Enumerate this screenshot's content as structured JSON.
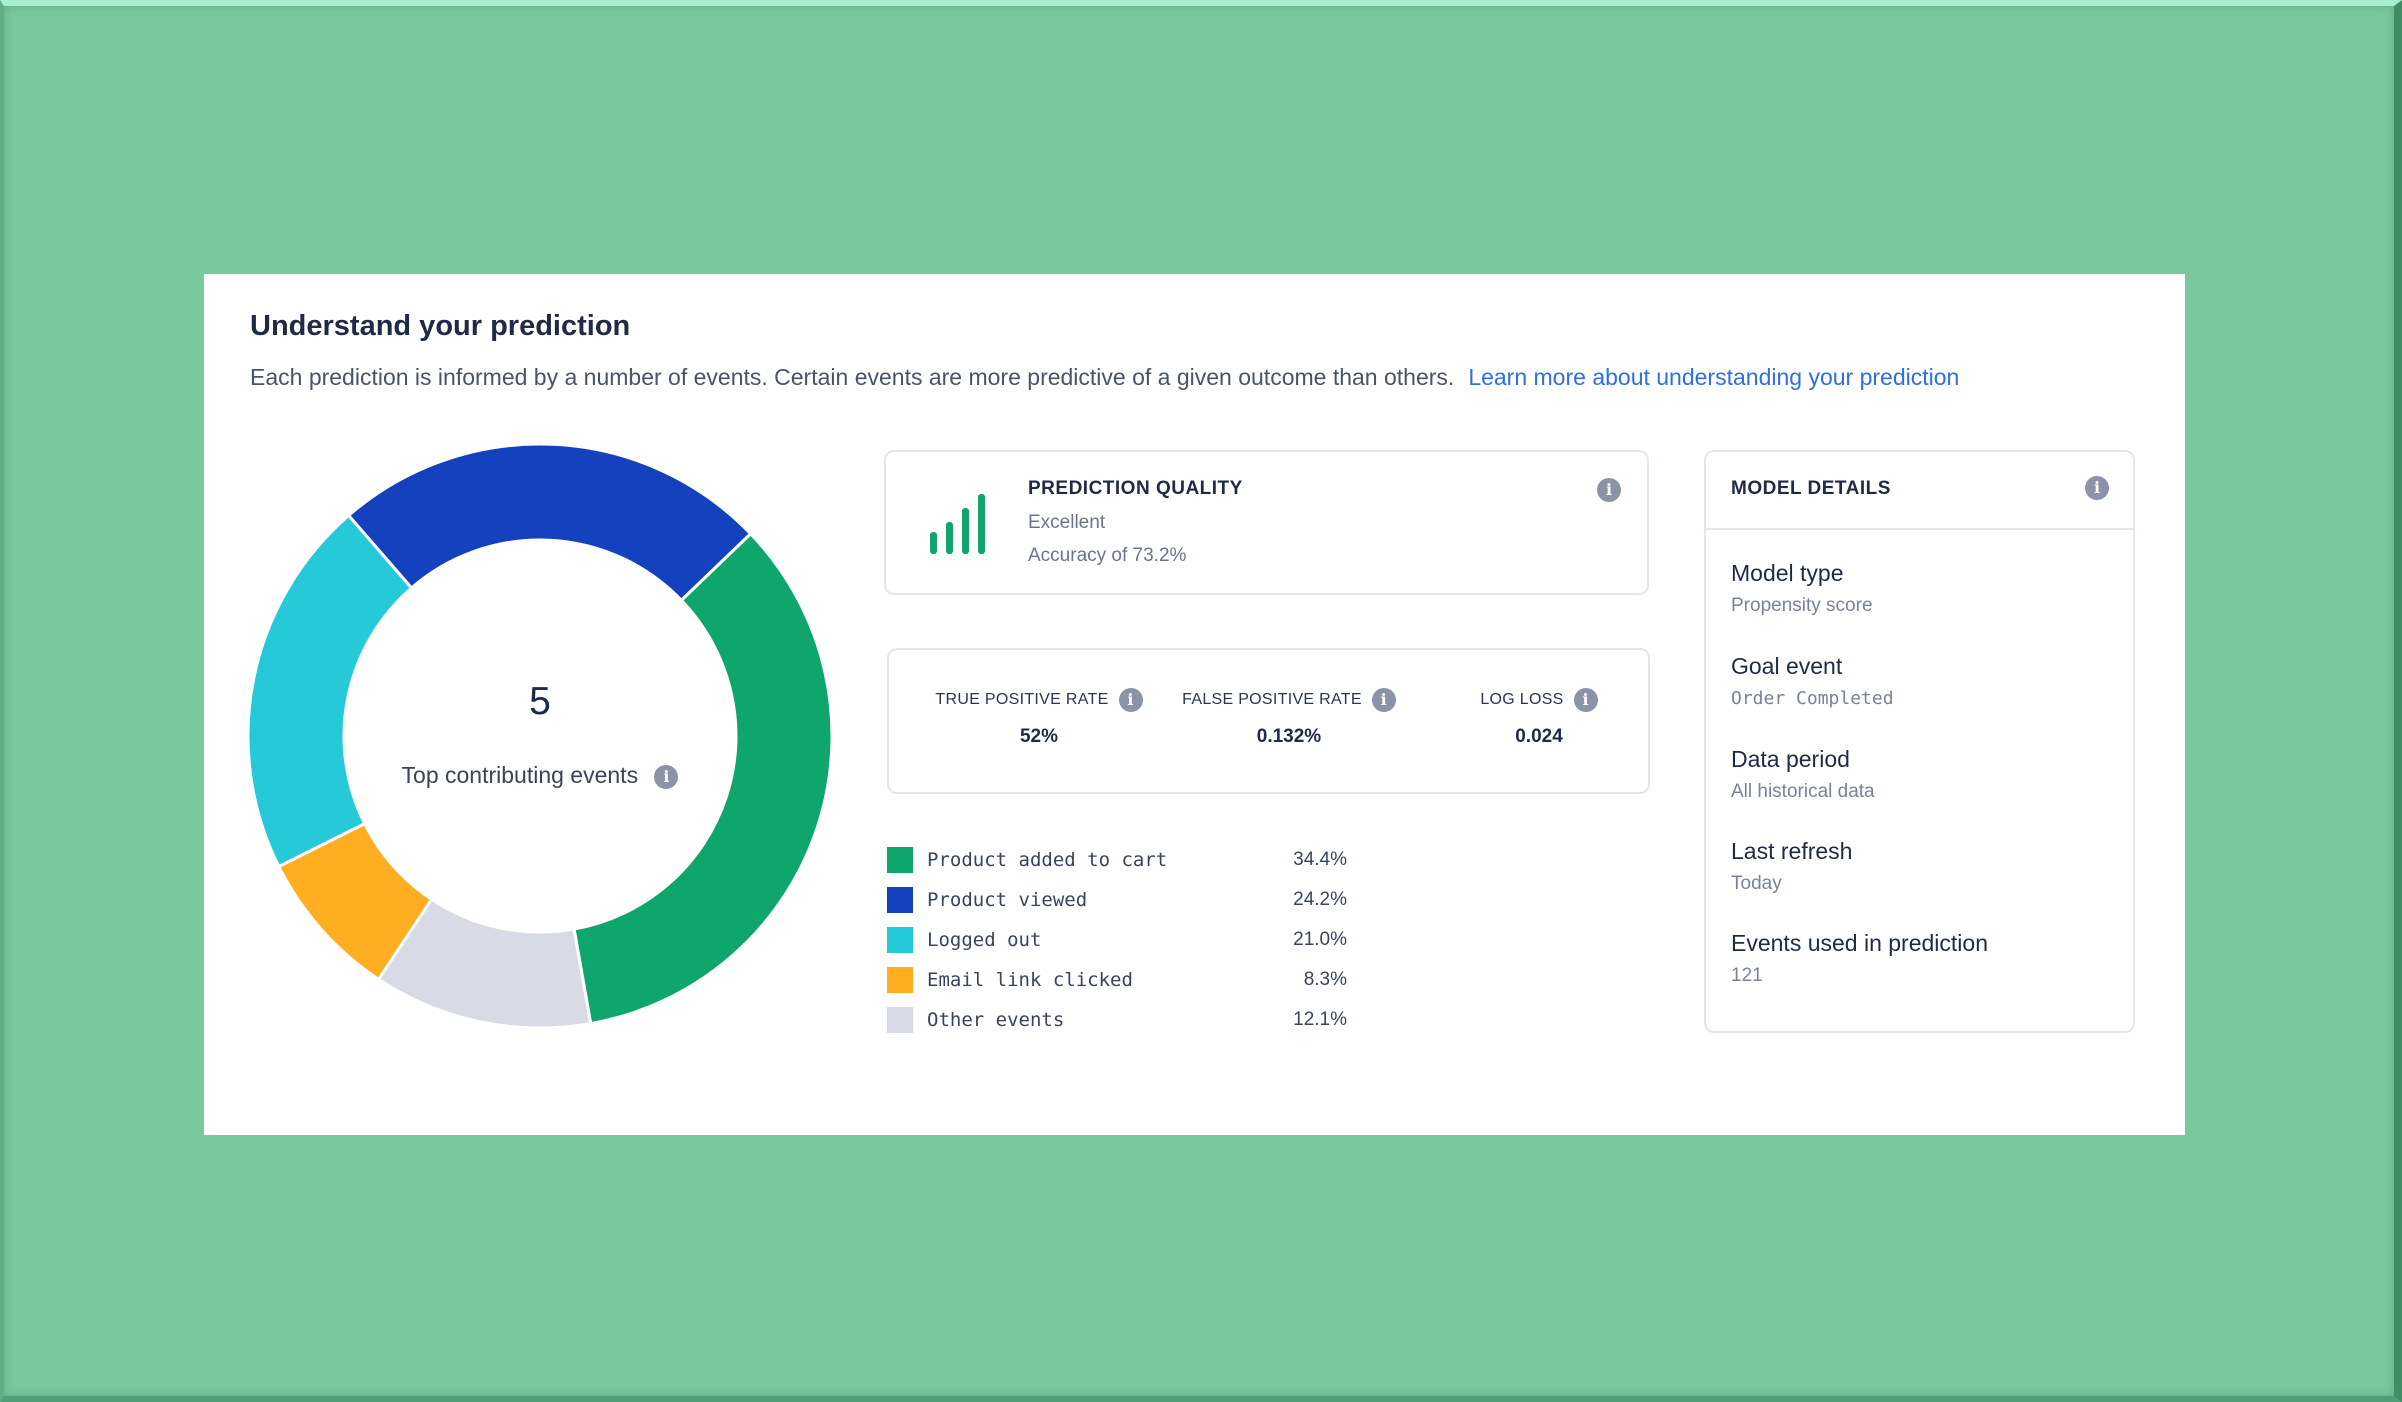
{
  "header": {
    "title": "Understand your prediction",
    "description": "Each prediction is informed by a number of events. Certain events are more predictive of a given outcome than others.",
    "link_text": "Learn more about understanding your prediction"
  },
  "donut_center": {
    "count": "5",
    "label": "Top contributing events"
  },
  "prediction_quality": {
    "heading": "PREDICTION QUALITY",
    "rating": "Excellent",
    "accuracy": "Accuracy of 73.2%"
  },
  "metrics": [
    {
      "label": "TRUE POSITIVE RATE",
      "value": "52%"
    },
    {
      "label": "FALSE POSITIVE RATE",
      "value": "0.132%"
    },
    {
      "label": "LOG LOSS",
      "value": "0.024"
    }
  ],
  "chart_data": {
    "type": "pie",
    "categories": [
      "Product added to cart",
      "Product viewed",
      "Logged out",
      "Email link clicked",
      "Other events"
    ],
    "values": [
      34.4,
      24.2,
      21.0,
      8.3,
      12.1
    ],
    "value_labels": [
      "34.4%",
      "24.2%",
      "21.0%",
      "8.3%",
      "12.1%"
    ],
    "colors": [
      "#0fa66c",
      "#1442bf",
      "#26c9d8",
      "#ffad21",
      "#d8dbe6"
    ],
    "style": "donut",
    "start": "bottom",
    "direction": "counterclockwise"
  },
  "model_details": {
    "heading": "MODEL DETAILS",
    "items": [
      {
        "label": "Model type",
        "value": "Propensity score"
      },
      {
        "label": "Goal event",
        "value": "Order Completed"
      },
      {
        "label": "Data period",
        "value": "All historical data"
      },
      {
        "label": "Last refresh",
        "value": "Today"
      },
      {
        "label": "Events used in prediction",
        "value": "121"
      }
    ]
  },
  "colors": {
    "background": "#79c89e",
    "link": "#2f6fe3",
    "quality_icon": "#10a36b",
    "info_icon": "#8a93a8"
  }
}
